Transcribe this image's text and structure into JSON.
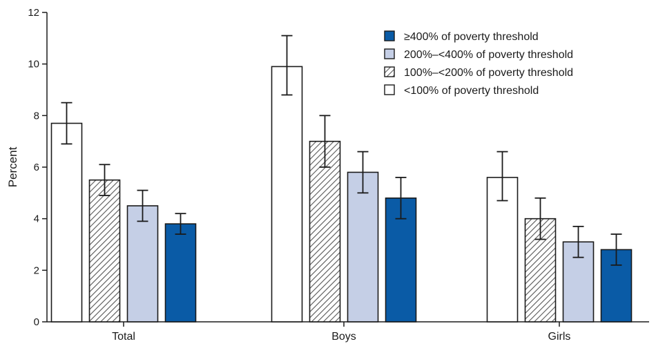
{
  "chart_data": {
    "type": "bar",
    "categories": [
      "Total",
      "Boys",
      "Girls"
    ],
    "series": [
      {
        "name": "<100% of poverty threshold",
        "fill": "white",
        "values": [
          7.7,
          9.9,
          5.6
        ],
        "ci_low": [
          6.9,
          8.8,
          4.7
        ],
        "ci_high": [
          8.5,
          11.1,
          6.6
        ]
      },
      {
        "name": "100%–<200% of poverty threshold",
        "fill": "hatch",
        "values": [
          5.5,
          7.0,
          4.0
        ],
        "ci_low": [
          4.9,
          6.0,
          3.2
        ],
        "ci_high": [
          6.1,
          8.0,
          4.8
        ]
      },
      {
        "name": "200%–<400% of poverty threshold",
        "fill": "#c5cfe6",
        "values": [
          4.5,
          5.8,
          3.1
        ],
        "ci_low": [
          3.9,
          5.0,
          2.5
        ],
        "ci_high": [
          5.1,
          6.6,
          3.7
        ]
      },
      {
        "name": "≥400% of poverty threshold",
        "fill": "#0a5ba6",
        "values": [
          3.8,
          4.8,
          2.8
        ],
        "ci_low": [
          3.4,
          4.0,
          2.2
        ],
        "ci_high": [
          4.2,
          5.6,
          3.4
        ]
      }
    ],
    "legend_order": [
      3,
      2,
      1,
      0
    ],
    "legend_position": "top-right",
    "ylabel": "Percent",
    "xlabel": "",
    "ylim": [
      0,
      12
    ],
    "yticks": [
      0,
      2,
      4,
      6,
      8,
      10,
      12
    ],
    "grid": false,
    "error_bars": true
  }
}
